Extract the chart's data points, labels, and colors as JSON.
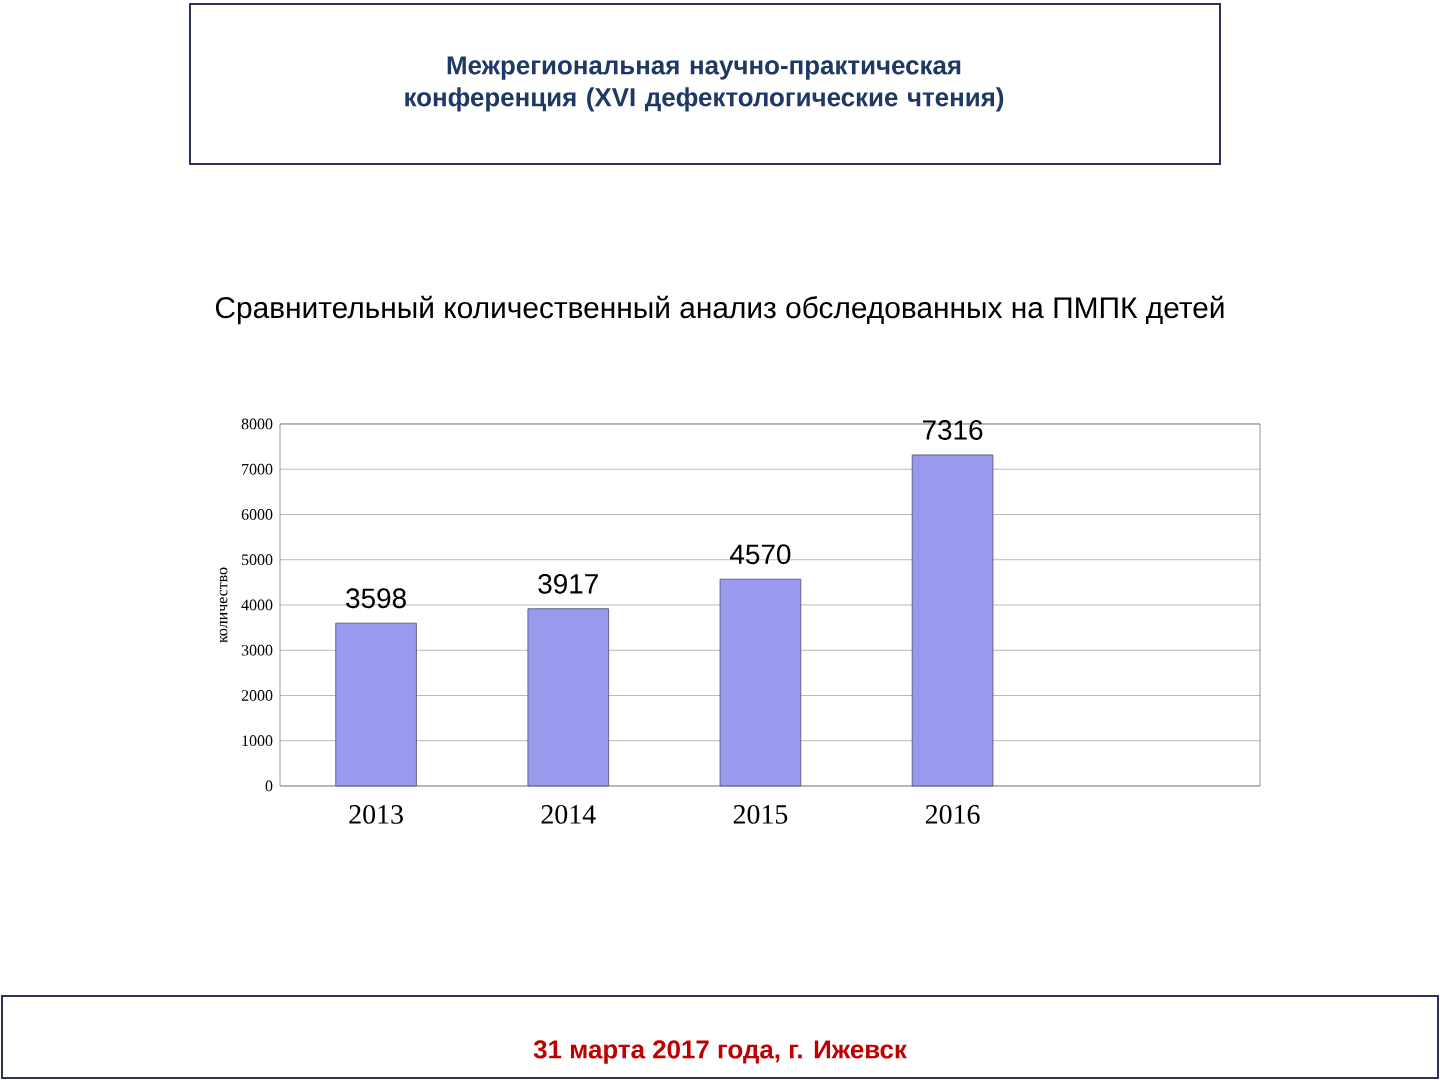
{
  "chart_data": {
    "type": "bar",
    "title": "Сравнительный количественный анализ обследованных на ПМПК детей",
    "subtitle": "Межрегиональная научно-практическая конференция (XVI дефектологические чтения)",
    "ylabel": "количество",
    "categories": [
      "2013",
      "2014",
      "2015",
      "2016"
    ],
    "values": [
      3598,
      3917,
      4570,
      7316
    ],
    "color": "#9999ee",
    "data_labels": true,
    "ylim": [
      0,
      8000
    ],
    "yticks": [
      0,
      1000,
      2000,
      3000,
      4000,
      5000,
      6000,
      7000,
      8000
    ],
    "grid": "y",
    "annotations": [
      "31 марта 2017 года, г. Ижевск"
    ]
  }
}
